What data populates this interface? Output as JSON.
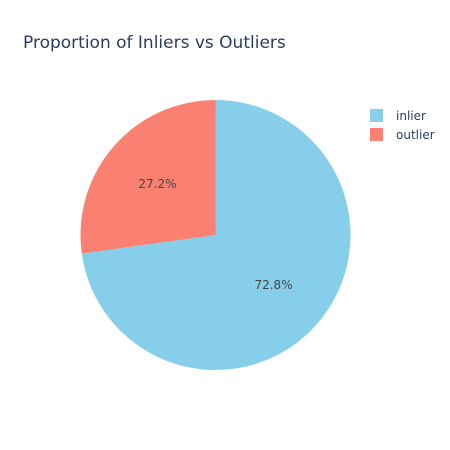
{
  "chart_data": {
    "type": "pie",
    "title": "Proportion of Inliers vs Outliers",
    "labels": [
      "inlier",
      "outlier"
    ],
    "values": [
      72.8,
      27.2
    ],
    "value_labels": [
      "72.8%",
      "27.2%"
    ],
    "colors": [
      "#87ceeb",
      "#fa8072"
    ],
    "direction": "clockwise",
    "start_angle": "12 o'clock",
    "legend_position": "top-right"
  }
}
